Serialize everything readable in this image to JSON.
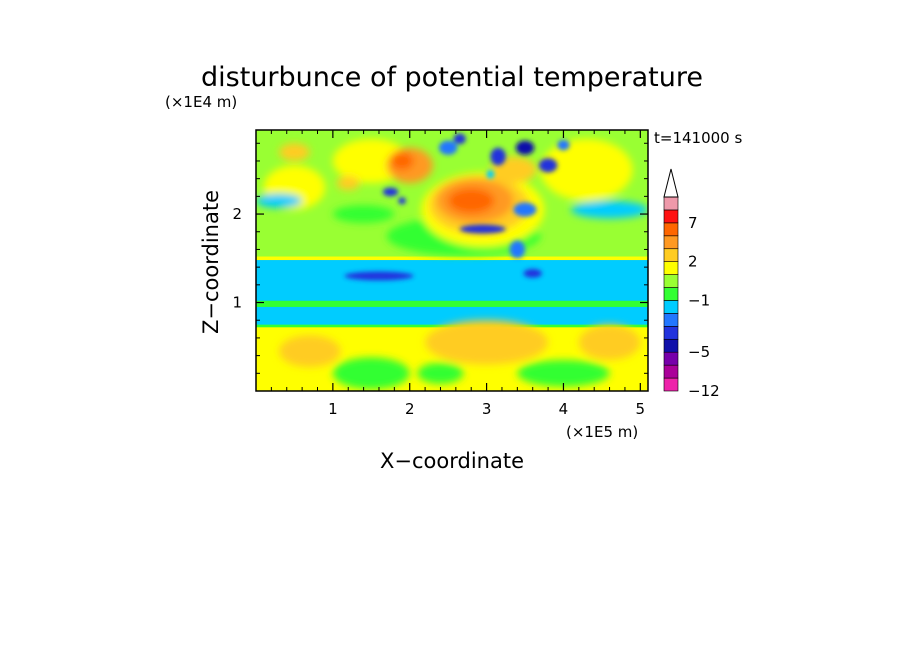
{
  "chart_data": {
    "type": "heatmap",
    "title": "disturbunce of potential temperature",
    "time_label": "t=141000 s",
    "xlabel": "X−coordinate",
    "ylabel": "Z−coordinate",
    "x_unit": "(×1E5 m)",
    "y_unit": "(×1E4 m)",
    "xlim": [
      0,
      5.1
    ],
    "ylim": [
      0,
      2.95
    ],
    "x_ticks": [
      "1",
      "2",
      "3",
      "4",
      "5"
    ],
    "y_ticks": [
      "1",
      "2"
    ],
    "colorbar": {
      "levels": [
        -12,
        -9,
        -7,
        -5,
        -4,
        -3,
        -2,
        -1,
        0,
        1,
        2,
        3,
        5,
        7,
        9,
        12
      ],
      "labels": [
        "−12",
        "−5",
        "−1",
        "2",
        "7"
      ],
      "colors": [
        "#ee22aa",
        "#aa0099",
        "#7700aa",
        "#1111aa",
        "#2233dd",
        "#2277ff",
        "#00ccff",
        "#33ff33",
        "#99ff33",
        "#ffff00",
        "#ffcc22",
        "#ff9922",
        "#ff6600",
        "#ff1111",
        "#ee99aa"
      ],
      "extend": "max"
    },
    "features": [
      {
        "kind": "band",
        "label": "upper-troposphere negative band",
        "z_range": [
          1.0,
          1.5
        ],
        "value": -1.5
      },
      {
        "kind": "warm-core",
        "x": 2.9,
        "z": 2.1,
        "value": 4
      },
      {
        "kind": "cold-spots",
        "x_range": [
          2.4,
          4.2
        ],
        "z": 2.75,
        "value": -4
      }
    ]
  }
}
